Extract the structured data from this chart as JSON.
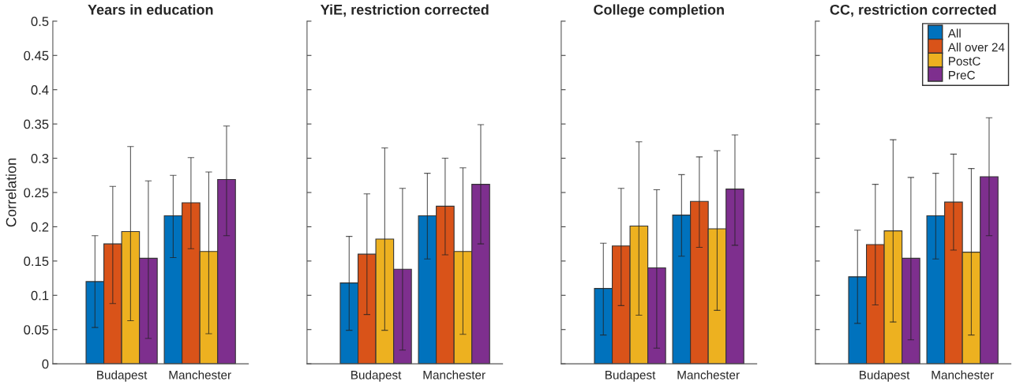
{
  "chart_data": [
    {
      "type": "bar",
      "title": "Years in education",
      "ylabel": "Correlation",
      "categories": [
        "Budapest",
        "Manchester"
      ],
      "ylim": [
        0,
        0.5
      ],
      "yticks": [
        0,
        0.05,
        0.1,
        0.15,
        0.2,
        0.25,
        0.3,
        0.35,
        0.4,
        0.45,
        0.5
      ],
      "grid": false,
      "series": [
        {
          "color": "#0072bd",
          "values": [
            0.12,
            0.216
          ],
          "errors": [
            [
              0.053,
              0.187
            ],
            [
              0.155,
              0.275
            ]
          ]
        },
        {
          "color": "#d95319",
          "values": [
            0.175,
            0.235
          ],
          "errors": [
            [
              0.088,
              0.259
            ],
            [
              0.168,
              0.301
            ]
          ]
        },
        {
          "color": "#edb120",
          "values": [
            0.193,
            0.164
          ],
          "errors": [
            [
              0.063,
              0.317
            ],
            [
              0.044,
              0.28
            ]
          ]
        },
        {
          "color": "#7e2f8e",
          "values": [
            0.154,
            0.269
          ],
          "errors": [
            [
              0.037,
              0.267
            ],
            [
              0.187,
              0.347
            ]
          ]
        }
      ]
    },
    {
      "type": "bar",
      "title": "YiE, restriction corrected",
      "categories": [
        "Budapest",
        "Manchester"
      ],
      "ylim": [
        0,
        0.5
      ],
      "yticks": [
        0,
        0.05,
        0.1,
        0.15,
        0.2,
        0.25,
        0.3,
        0.35,
        0.4,
        0.45,
        0.5
      ],
      "tick_labels": "x",
      "grid": false,
      "series": [
        {
          "color": "#0072bd",
          "values": [
            0.118,
            0.216
          ],
          "errors": [
            [
              0.049,
              0.186
            ],
            [
              0.153,
              0.278
            ]
          ]
        },
        {
          "color": "#d95319",
          "values": [
            0.16,
            0.23
          ],
          "errors": [
            [
              0.072,
              0.248
            ],
            [
              0.159,
              0.3
            ]
          ]
        },
        {
          "color": "#edb120",
          "values": [
            0.182,
            0.164
          ],
          "errors": [
            [
              0.049,
              0.315
            ],
            [
              0.043,
              0.286
            ]
          ]
        },
        {
          "color": "#7e2f8e",
          "values": [
            0.138,
            0.262
          ],
          "errors": [
            [
              0.02,
              0.256
            ],
            [
              0.175,
              0.349
            ]
          ]
        }
      ]
    },
    {
      "type": "bar",
      "title": "College completion",
      "categories": [
        "Budapest",
        "Manchester"
      ],
      "ylim": [
        0,
        0.5
      ],
      "yticks": [
        0,
        0.05,
        0.1,
        0.15,
        0.2,
        0.25,
        0.3,
        0.35,
        0.4,
        0.45,
        0.5
      ],
      "tick_labels": "x",
      "grid": false,
      "series": [
        {
          "color": "#0072bd",
          "values": [
            0.11,
            0.217
          ],
          "errors": [
            [
              0.042,
              0.176
            ],
            [
              0.157,
              0.276
            ]
          ]
        },
        {
          "color": "#d95319",
          "values": [
            0.172,
            0.237
          ],
          "errors": [
            [
              0.085,
              0.256
            ],
            [
              0.17,
              0.302
            ]
          ]
        },
        {
          "color": "#edb120",
          "values": [
            0.201,
            0.197
          ],
          "errors": [
            [
              0.071,
              0.324
            ],
            [
              0.078,
              0.311
            ]
          ]
        },
        {
          "color": "#7e2f8e",
          "values": [
            0.14,
            0.255
          ],
          "errors": [
            [
              0.023,
              0.254
            ],
            [
              0.173,
              0.334
            ]
          ]
        }
      ]
    },
    {
      "type": "bar",
      "title": "CC, restriction corrected",
      "categories": [
        "Budapest",
        "Manchester"
      ],
      "ylim": [
        0,
        0.5
      ],
      "yticks": [
        0,
        0.05,
        0.1,
        0.15,
        0.2,
        0.25,
        0.3,
        0.35,
        0.4,
        0.45,
        0.5
      ],
      "tick_labels": "x",
      "grid": false,
      "legend": "top right",
      "series": [
        {
          "name": "All",
          "color": "#0072bd",
          "values": [
            0.127,
            0.216
          ],
          "errors": [
            [
              0.059,
              0.195
            ],
            [
              0.153,
              0.278
            ]
          ]
        },
        {
          "name": "All over 24",
          "color": "#d95319",
          "values": [
            0.174,
            0.236
          ],
          "errors": [
            [
              0.086,
              0.262
            ],
            [
              0.166,
              0.306
            ]
          ]
        },
        {
          "name": "PostC",
          "color": "#edb120",
          "values": [
            0.194,
            0.163
          ],
          "errors": [
            [
              0.061,
              0.327
            ],
            [
              0.042,
              0.285
            ]
          ]
        },
        {
          "name": "PreC",
          "color": "#7e2f8e",
          "values": [
            0.154,
            0.273
          ],
          "errors": [
            [
              0.035,
              0.272
            ],
            [
              0.187,
              0.359
            ]
          ]
        }
      ]
    }
  ]
}
